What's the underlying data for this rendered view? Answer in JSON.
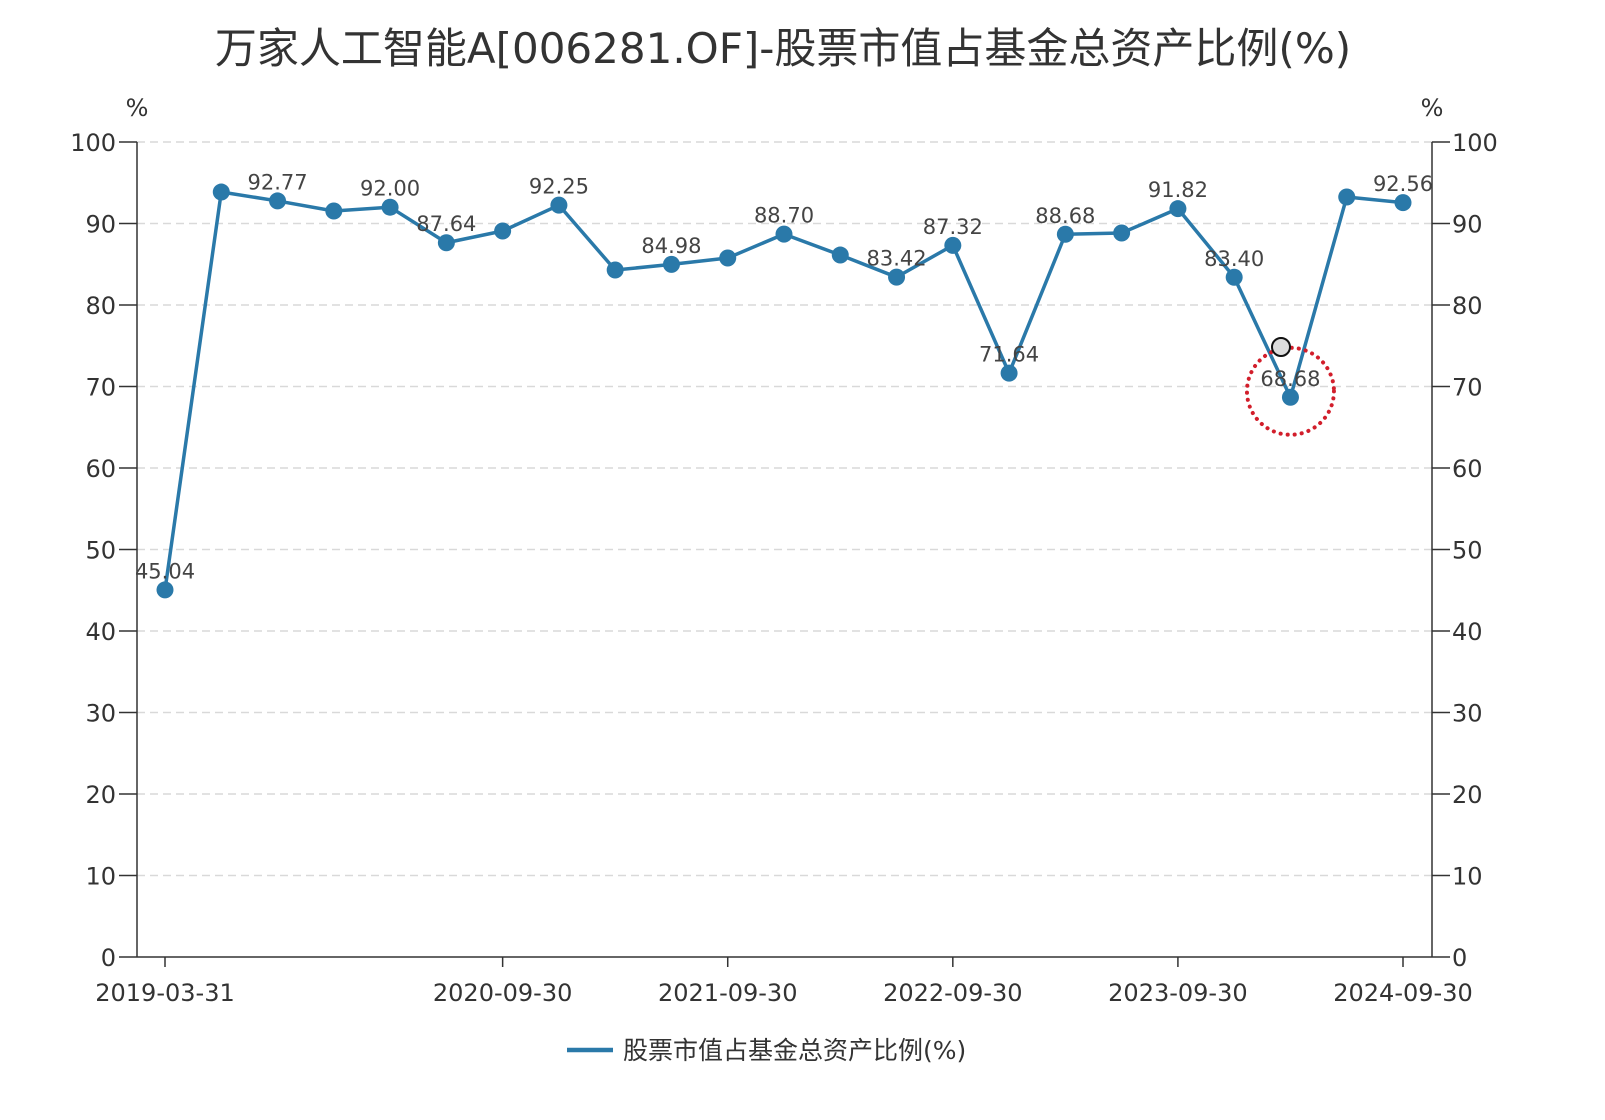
{
  "colors": {
    "series": "#2a79a9",
    "highlight": "#d21e2b"
  },
  "chart_data": {
    "type": "line",
    "title": "万家人工智能A[006281.OF]-股票市值占基金总资产比例(%)",
    "y_unit": "%",
    "x": [
      "2019-03-31",
      "2019-06-30",
      "2019-09-30",
      "2019-12-31",
      "2020-03-31",
      "2020-06-30",
      "2020-09-30",
      "2020-12-31",
      "2021-03-31",
      "2021-06-30",
      "2021-09-30",
      "2021-12-31",
      "2022-03-31",
      "2022-06-30",
      "2022-09-30",
      "2022-12-31",
      "2023-03-31",
      "2023-06-30",
      "2023-09-30",
      "2023-12-31",
      "2024-03-31",
      "2024-06-30",
      "2024-09-30"
    ],
    "x_ticks": [
      "2019-03-31",
      "2020-09-30",
      "2021-09-30",
      "2022-09-30",
      "2023-09-30",
      "2024-09-30"
    ],
    "ylim": [
      0,
      100
    ],
    "y2lim": [
      0,
      100
    ],
    "y_ticks": [
      0,
      10,
      20,
      30,
      40,
      50,
      60,
      70,
      80,
      90,
      100
    ],
    "grid": true,
    "legend_position": "bottom",
    "series": [
      {
        "name": "股票市值占基金总资产比例(%)",
        "values": [
          45.04,
          93.86,
          92.77,
          91.53,
          92.0,
          87.64,
          89.08,
          92.25,
          84.29,
          84.98,
          85.77,
          88.7,
          86.13,
          83.42,
          87.32,
          71.64,
          88.68,
          88.83,
          91.82,
          83.4,
          68.68,
          93.25,
          92.56
        ],
        "data_labels": [
          "45.04",
          null,
          "92.77",
          null,
          "92.00",
          "87.64",
          null,
          "92.25",
          null,
          "84.98",
          null,
          "88.70",
          null,
          "83.42",
          "87.32",
          "71.64",
          "88.68",
          null,
          "91.82",
          "83.40",
          "68.68",
          null,
          "92.56"
        ]
      }
    ],
    "highlight_x": "2024-03-31"
  }
}
